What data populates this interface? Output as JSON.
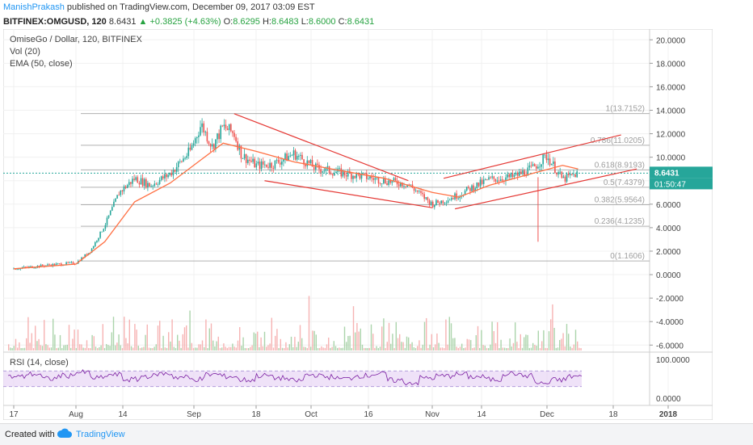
{
  "header": {
    "author": "ManishPrakash",
    "published_text": "published on TradingView.com, December 09, 2017 03:09 EST",
    "symbol": "BITFINEX:OMGUSD, 120",
    "last": "8.6431",
    "change": "+0.3825 (+4.63%)",
    "open_label": "O:",
    "open": "8.6295",
    "high_label": "H:",
    "high": "8.6483",
    "low_label": "L:",
    "low": "8.6000",
    "close_label": "C:",
    "close": "8.6431"
  },
  "legend": {
    "title": "OmiseGo / Dollar, 120, BITFINEX",
    "vol": "Vol (20)",
    "ema": "EMA (50, close)",
    "rsi": "RSI (14, close)"
  },
  "colors": {
    "up": "#26a69a",
    "down": "#ef5350",
    "ema": "#ff7043",
    "trendline": "#e53935",
    "fib": "#b0b0b0",
    "rsi_line": "#7b1fa2",
    "rsi_band": "#e8d5f5"
  },
  "chart_data": [
    {
      "type": "line",
      "title": "OmiseGo / Dollar, 120, BITFINEX",
      "ylim": [
        -6.6,
        20.5
      ],
      "y_ticks": [
        "20.0000",
        "18.0000",
        "16.0000",
        "14.0000",
        "12.0000",
        "10.0000",
        "8.0000",
        "6.0000",
        "4.0000",
        "2.0000",
        "0.0000",
        "-2.0000",
        "-4.0000",
        "-6.0000"
      ],
      "x_ticks": [
        "17",
        "Aug",
        "14",
        "Sep",
        "18",
        "Oct",
        "16",
        "Nov",
        "14",
        "Dec",
        "18",
        "2018"
      ],
      "price_label": "8.6431",
      "countdown_label": "01:50:47",
      "series": [
        {
          "name": "OMGUSD",
          "x": [
            "Jul 17",
            "Jul 25",
            "Aug 1",
            "Aug 5",
            "Aug 9",
            "Aug 13",
            "Aug 17",
            "Aug 21",
            "Aug 26",
            "Aug 31",
            "Sep 3",
            "Sep 6",
            "Sep 9",
            "Sep 12",
            "Sep 14",
            "Sep 18",
            "Sep 22",
            "Sep 27",
            "Oct 2",
            "Oct 8",
            "Oct 14",
            "Oct 20",
            "Oct 26",
            "Nov 1",
            "Nov 4",
            "Nov 8",
            "Nov 12",
            "Nov 16",
            "Nov 22",
            "Nov 27",
            "Dec 1",
            "Dec 5",
            "Dec 9"
          ],
          "values": [
            0.5,
            0.8,
            1.0,
            2.0,
            4.2,
            7.0,
            8.2,
            7.6,
            8.6,
            10.5,
            12.8,
            10.9,
            12.6,
            12.0,
            10.2,
            9.3,
            9.4,
            10.3,
            9.1,
            8.7,
            8.4,
            8.0,
            7.7,
            6.0,
            6.3,
            6.8,
            7.5,
            8.1,
            8.3,
            9.0,
            10.1,
            8.1,
            8.64
          ]
        },
        {
          "name": "EMA (50, close)",
          "x": [
            "Jul 17",
            "Aug 1",
            "Aug 9",
            "Aug 17",
            "Aug 26",
            "Sep 3",
            "Sep 9",
            "Sep 18",
            "Sep 27",
            "Oct 8",
            "Oct 20",
            "Nov 1",
            "Nov 8",
            "Nov 16",
            "Nov 27",
            "Dec 5",
            "Dec 9"
          ],
          "values": [
            0.5,
            0.9,
            2.8,
            6.2,
            7.8,
            9.8,
            11.2,
            10.5,
            9.6,
            8.9,
            8.2,
            7.0,
            6.6,
            7.6,
            8.6,
            9.3,
            9.0
          ]
        }
      ],
      "annotations": [
        "1(13.7152)",
        "0.786(11.0205)",
        "0.618(8.9193)",
        "0.5(7.4379)",
        "0.382(5.9564)",
        "0.236(4.1235)",
        "0(1.1606)"
      ],
      "fib_levels": [
        13.7152,
        11.0205,
        8.9193,
        7.4379,
        5.9564,
        4.1235,
        1.1606
      ]
    },
    {
      "type": "line",
      "title": "RSI (14, close)",
      "ylim": [
        -10,
        110
      ],
      "y_ticks": [
        "100.0000",
        "0.0000"
      ],
      "band": [
        30,
        70
      ],
      "series": [
        {
          "name": "RSI (14, close)",
          "values": [
            55,
            62,
            50,
            58,
            66,
            52,
            60,
            48,
            57,
            63,
            54,
            49,
            61,
            56,
            47,
            58,
            52,
            45,
            60,
            55,
            50,
            58,
            62,
            46,
            40,
            52,
            57,
            61,
            55,
            48,
            64,
            58,
            38,
            47,
            56
          ]
        }
      ]
    }
  ]
}
